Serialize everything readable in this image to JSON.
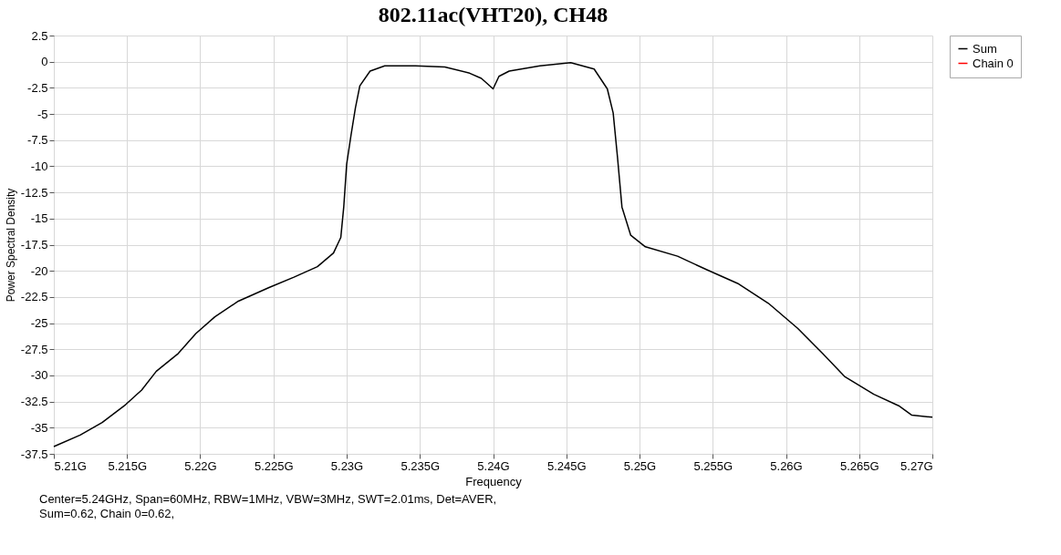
{
  "chart_data": {
    "type": "line",
    "title": "802.11ac(VHT20), CH48",
    "xlabel": "Frequency",
    "ylabel": "Power Spectral Density",
    "x": [
      5.21,
      5.2118,
      5.2133,
      5.2149,
      5.216,
      5.217,
      5.2185,
      5.2197,
      5.221,
      5.2226,
      5.2247,
      5.2264,
      5.228,
      5.2291,
      5.2296,
      5.2298,
      5.23,
      5.2303,
      5.2306,
      5.2309,
      5.2316,
      5.2326,
      5.2347,
      5.2367,
      5.2384,
      5.2392,
      5.24,
      5.2404,
      5.2411,
      5.2432,
      5.2453,
      5.2469,
      5.2478,
      5.2482,
      5.2485,
      5.2488,
      5.2494,
      5.2504,
      5.2526,
      5.2546,
      5.2567,
      5.2588,
      5.2608,
      5.2625,
      5.264,
      5.266,
      5.2677,
      5.2686,
      5.27
    ],
    "series": [
      {
        "name": "Sum",
        "color": "#000000",
        "values": [
          -36.8,
          -35.7,
          -34.5,
          -32.8,
          -31.4,
          -29.6,
          -27.9,
          -26.0,
          -24.4,
          -22.9,
          -21.6,
          -20.6,
          -19.6,
          -18.3,
          -16.8,
          -13.9,
          -9.8,
          -7.0,
          -4.4,
          -2.3,
          -0.9,
          -0.4,
          -0.4,
          -0.5,
          -1.1,
          -1.6,
          -2.6,
          -1.4,
          -0.9,
          -0.4,
          -0.1,
          -0.7,
          -2.6,
          -4.9,
          -9.2,
          -13.9,
          -16.6,
          -17.7,
          -18.6,
          -19.9,
          -21.2,
          -23.1,
          -25.5,
          -27.9,
          -30.1,
          -31.8,
          -32.9,
          -33.8,
          -34.0
        ]
      },
      {
        "name": "Chain 0",
        "color": "#ff0000",
        "values": [
          null,
          null,
          null,
          null,
          null,
          null,
          null,
          null,
          null,
          null,
          null,
          null,
          null,
          null,
          null,
          null,
          null,
          null,
          null,
          null,
          null,
          null,
          null,
          null,
          null,
          null,
          null,
          null,
          null,
          null,
          null,
          null,
          null,
          null,
          null,
          null,
          null,
          null,
          null,
          null,
          null,
          null,
          null,
          null,
          null,
          null,
          null,
          null,
          null
        ]
      }
    ],
    "xlim": [
      5.21,
      5.27
    ],
    "xticks": [
      {
        "value": 5.21,
        "label": "5.21G"
      },
      {
        "value": 5.215,
        "label": "5.215G"
      },
      {
        "value": 5.22,
        "label": "5.22G"
      },
      {
        "value": 5.225,
        "label": "5.225G"
      },
      {
        "value": 5.23,
        "label": "5.23G"
      },
      {
        "value": 5.235,
        "label": "5.235G"
      },
      {
        "value": 5.24,
        "label": "5.24G"
      },
      {
        "value": 5.245,
        "label": "5.245G"
      },
      {
        "value": 5.25,
        "label": "5.25G"
      },
      {
        "value": 5.255,
        "label": "5.255G"
      },
      {
        "value": 5.26,
        "label": "5.26G"
      },
      {
        "value": 5.265,
        "label": "5.265G"
      },
      {
        "value": 5.27,
        "label": "5.27G"
      }
    ],
    "ylim": [
      -37.5,
      2.5
    ],
    "yticks": [
      2.5,
      0,
      -2.5,
      -5,
      -7.5,
      -10,
      -12.5,
      -15,
      -17.5,
      -20,
      -22.5,
      -25,
      -27.5,
      -30,
      -32.5,
      -35,
      -37.5
    ],
    "grid": true,
    "legend": "top right",
    "marker": "none",
    "line_style": "solid",
    "annotations": [
      "Center=5.24GHz,  Span=60MHz,  RBW=1MHz,  VBW=3MHz,  SWT=2.01ms,  Det=AVER,",
      "Sum=0.62, Chain 0=0.62,"
    ]
  }
}
